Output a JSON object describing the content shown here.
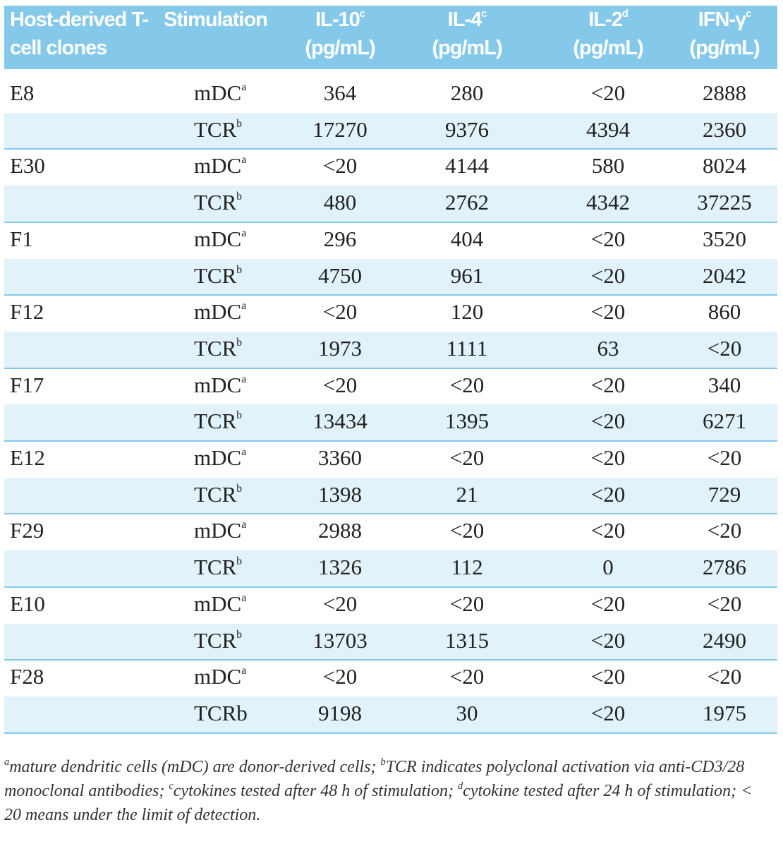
{
  "table": {
    "header": [
      {
        "text": "Host-derived T-cell clones"
      },
      {
        "text": "Stimulation"
      },
      {
        "text": "IL-10",
        "sup": "c",
        "unit": "(pg/mL)"
      },
      {
        "text": "IL-4",
        "sup": "c",
        "unit": "(pg/mL)"
      },
      {
        "text": "IL-2",
        "sup": "d",
        "unit": "(pg/mL)"
      },
      {
        "text": "IFN-γ",
        "sup": "c",
        "unit": "(pg/mL)"
      }
    ],
    "groups": [
      {
        "clone": "E8",
        "rows": [
          {
            "stimulation": {
              "text": "mDC",
              "sup": "a"
            },
            "values": [
              364,
              280,
              "<20",
              2888
            ]
          },
          {
            "stimulation": {
              "text": "TCR",
              "sup": "b"
            },
            "values": [
              17270,
              9376,
              4394,
              2360
            ]
          }
        ]
      },
      {
        "clone": "E30",
        "rows": [
          {
            "stimulation": {
              "text": "mDC",
              "sup": "a"
            },
            "values": [
              "<20",
              4144,
              580,
              8024
            ]
          },
          {
            "stimulation": {
              "text": "TCR",
              "sup": "b"
            },
            "values": [
              480,
              2762,
              4342,
              37225
            ]
          }
        ]
      },
      {
        "clone": "F1",
        "rows": [
          {
            "stimulation": {
              "text": "mDC",
              "sup": "a"
            },
            "values": [
              296,
              404,
              "<20",
              3520
            ]
          },
          {
            "stimulation": {
              "text": "TCR",
              "sup": "b"
            },
            "values": [
              4750,
              961,
              "<20",
              2042
            ]
          }
        ]
      },
      {
        "clone": "F12",
        "rows": [
          {
            "stimulation": {
              "text": "mDC",
              "sup": "a"
            },
            "values": [
              "<20",
              120,
              "<20",
              860
            ]
          },
          {
            "stimulation": {
              "text": "TCR",
              "sup": "b"
            },
            "values": [
              1973,
              1111,
              63,
              "<20"
            ]
          }
        ]
      },
      {
        "clone": "F17",
        "rows": [
          {
            "stimulation": {
              "text": "mDC",
              "sup": "a"
            },
            "values": [
              "<20",
              "<20",
              "<20",
              340
            ]
          },
          {
            "stimulation": {
              "text": "TCR",
              "sup": "b"
            },
            "values": [
              13434,
              1395,
              "<20",
              6271
            ]
          }
        ]
      },
      {
        "clone": "E12",
        "rows": [
          {
            "stimulation": {
              "text": "mDC",
              "sup": "a"
            },
            "values": [
              3360,
              "<20",
              "<20",
              "<20"
            ]
          },
          {
            "stimulation": {
              "text": "TCR",
              "sup": "b"
            },
            "values": [
              1398,
              21,
              "<20",
              729
            ]
          }
        ]
      },
      {
        "clone": "F29",
        "rows": [
          {
            "stimulation": {
              "text": "mDC",
              "sup": "a"
            },
            "values": [
              2988,
              "<20",
              "<20",
              "<20"
            ]
          },
          {
            "stimulation": {
              "text": "TCR",
              "sup": "b"
            },
            "values": [
              1326,
              112,
              0,
              2786
            ]
          }
        ]
      },
      {
        "clone": "E10",
        "rows": [
          {
            "stimulation": {
              "text": "mDC",
              "sup": "a"
            },
            "values": [
              "<20",
              "<20",
              "<20",
              "<20"
            ]
          },
          {
            "stimulation": {
              "text": "TCR",
              "sup": "b"
            },
            "values": [
              13703,
              1315,
              "<20",
              2490
            ]
          }
        ]
      },
      {
        "clone": "F28",
        "rows": [
          {
            "stimulation": {
              "text": "mDC",
              "sup": "a"
            },
            "values": [
              "<20",
              "<20",
              "<20",
              "<20"
            ]
          },
          {
            "stimulation": {
              "text": "TCRb"
            },
            "values": [
              9198,
              30,
              "<20",
              1975
            ]
          }
        ]
      }
    ],
    "footnote": [
      {
        "sup": "a",
        "text": "mature dendritic cells (mDC) are donor-derived cells; "
      },
      {
        "sup": "b",
        "text": "TCR indicates polyclonal activation via anti-CD3/28 monoclonal antibodies; "
      },
      {
        "sup": "c",
        "text": "cytokines tested after 48 h of stimulation; "
      },
      {
        "sup": "d",
        "text": "cytokine tested after 24 h of stimulation; < 20 means under the limit of detection."
      }
    ]
  }
}
